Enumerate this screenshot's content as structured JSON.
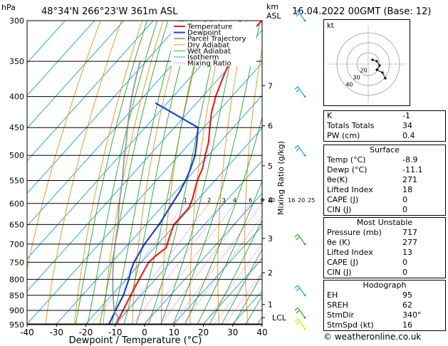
{
  "header": {
    "hpa_label": "hPa",
    "location": "48°34'N 266°23'W 361m ASL",
    "km_label": "km",
    "asl_label": "ASL",
    "datetime": "16.04.2022 00GMT (Base: 12)"
  },
  "chart_data": {
    "type": "line",
    "xlabel": "Dewpoint / Temperature (°C)",
    "ylabel": "hPa",
    "right_axis_label": "Mixing Ratio (g/kg)",
    "xlim": [
      -40,
      40
    ],
    "pressure_range": [
      300,
      1000
    ],
    "x_ticks": [
      -40,
      -30,
      -20,
      -10,
      0,
      10,
      20,
      30,
      40
    ],
    "pressure_ticks": [
      300,
      350,
      400,
      450,
      500,
      550,
      600,
      650,
      700,
      750,
      800,
      850,
      900,
      950
    ],
    "height_ticks": [
      {
        "km": "1",
        "p": 880
      },
      {
        "km": "2",
        "p": 780
      },
      {
        "km": "3",
        "p": 685
      },
      {
        "km": "4",
        "p": 592
      },
      {
        "km": "5",
        "p": 520
      },
      {
        "km": "6",
        "p": 447
      },
      {
        "km": "7",
        "p": 384
      }
    ],
    "lcl": {
      "label": "LCL",
      "p": 925
    },
    "mixing_ratio_labels": [
      "1",
      "2",
      "3",
      "4",
      "6",
      "8",
      "10",
      "16",
      "20",
      "25"
    ],
    "mixing_ratio_values": [
      1,
      2,
      3,
      4,
      6,
      8,
      10,
      16,
      20,
      25
    ],
    "legend": [
      "Temperature",
      "Dewpoint",
      "Parcel Trajectory",
      "Dry Adiabat",
      "Wet Adiabat",
      "Isotherm",
      "Mixing Ratio"
    ],
    "legend_placement": "top-left",
    "series": [
      {
        "name": "Temperature",
        "color": "#e8251c",
        "points": [
          [
            -8.9,
            965
          ],
          [
            -9.5,
            950
          ],
          [
            -10.5,
            925
          ],
          [
            -11.5,
            900
          ],
          [
            -12.5,
            875
          ],
          [
            -13.5,
            850
          ],
          [
            -14.5,
            825
          ],
          [
            -15.5,
            800
          ],
          [
            -16.5,
            775
          ],
          [
            -17.5,
            750
          ],
          [
            -17.0,
            730
          ],
          [
            -16.0,
            710
          ],
          [
            -17.5,
            690
          ],
          [
            -19.0,
            670
          ],
          [
            -20.5,
            650
          ],
          [
            -20.5,
            630
          ],
          [
            -20.5,
            610
          ],
          [
            -22.0,
            590
          ],
          [
            -24.0,
            570
          ],
          [
            -26.0,
            550
          ],
          [
            -28.0,
            525
          ],
          [
            -31.0,
            500
          ],
          [
            -34.0,
            475
          ],
          [
            -38.0,
            450
          ],
          [
            -42.0,
            425
          ],
          [
            -45.5,
            400
          ],
          [
            -48.5,
            375
          ],
          [
            -51.5,
            350
          ],
          [
            -53.5,
            325
          ],
          [
            -53.0,
            300
          ]
        ]
      },
      {
        "name": "Dewpoint",
        "color": "#1f3fd6",
        "points": [
          [
            -11.1,
            965
          ],
          [
            -12.0,
            950
          ],
          [
            -13.0,
            925
          ],
          [
            -14.0,
            900
          ],
          [
            -15.0,
            875
          ],
          [
            -16.0,
            850
          ],
          [
            -17.5,
            825
          ],
          [
            -19.0,
            800
          ],
          [
            -21.0,
            775
          ],
          [
            -22.5,
            750
          ],
          [
            -23.5,
            725
          ],
          [
            -24.5,
            700
          ],
          [
            -25.0,
            675
          ],
          [
            -25.5,
            650
          ],
          [
            -26.5,
            625
          ],
          [
            -27.5,
            600
          ],
          [
            -28.5,
            575
          ],
          [
            -30.0,
            550
          ],
          [
            -32.0,
            525
          ],
          [
            -34.5,
            500
          ],
          [
            -38.0,
            475
          ],
          [
            -42.0,
            450
          ],
          [
            -64.0,
            410
          ]
        ]
      },
      {
        "name": "Parcel Trajectory",
        "color": "#a0a0a0",
        "points": [
          [
            -8.9,
            965
          ],
          [
            -11.0,
            925
          ],
          [
            -14.5,
            900
          ],
          [
            -17.0,
            875
          ],
          [
            -19.5,
            850
          ],
          [
            -22.0,
            825
          ],
          [
            -24.5,
            800
          ],
          [
            -27.0,
            775
          ],
          [
            -29.5,
            750
          ],
          [
            -32.0,
            725
          ],
          [
            -34.5,
            700
          ],
          [
            -37.0,
            675
          ],
          [
            -39.5,
            650
          ],
          [
            -42.5,
            625
          ],
          [
            -45.5,
            600
          ],
          [
            -48.5,
            575
          ],
          [
            -51.5,
            550
          ],
          [
            -55.0,
            525
          ],
          [
            -58.5,
            500
          ],
          [
            -62.0,
            475
          ],
          [
            -66.0,
            450
          ],
          [
            -70.0,
            425
          ],
          [
            -74.0,
            400
          ],
          [
            -78.0,
            375
          ],
          [
            -82.0,
            350
          ]
        ]
      }
    ]
  },
  "hodograph": {
    "label": "kt",
    "ring_labels": [
      "20",
      "30",
      "40"
    ]
  },
  "indices": {
    "k": {
      "label": "K",
      "value": "-1"
    },
    "tt": {
      "label": "Totals Totals",
      "value": "34"
    },
    "pw": {
      "label": "PW (cm)",
      "value": "0.4"
    }
  },
  "surface": {
    "title": "Surface",
    "rows": [
      {
        "label": "Temp (°C)",
        "value": "-8.9"
      },
      {
        "label": "Dewp (°C)",
        "value": "-11.1"
      },
      {
        "label": "θe(K)",
        "value": "271"
      },
      {
        "label": "Lifted Index",
        "value": "18"
      },
      {
        "label": "CAPE (J)",
        "value": "0"
      },
      {
        "label": "CIN (J)",
        "value": "0"
      }
    ]
  },
  "most_unstable": {
    "title": "Most Unstable",
    "rows": [
      {
        "label": "Pressure (mb)",
        "value": "717"
      },
      {
        "label": "θe (K)",
        "value": "277"
      },
      {
        "label": "Lifted Index",
        "value": "13"
      },
      {
        "label": "CAPE (J)",
        "value": "0"
      },
      {
        "label": "CIN (J)",
        "value": "0"
      }
    ]
  },
  "hodograph_stats": {
    "title": "Hodograph",
    "rows": [
      {
        "label": "EH",
        "value": "95"
      },
      {
        "label": "SREH",
        "value": "62"
      },
      {
        "label": "StmDir",
        "value": "340°"
      },
      {
        "label": "StmSpd (kt)",
        "value": "16"
      }
    ]
  },
  "credit": "© weatheronline.co.uk",
  "colors": {
    "temperature": "#e8251c",
    "dewpoint": "#1f3fd6",
    "parcel": "#a0a0a0",
    "dry_adiabat": "#e89a2e",
    "wet_adiabat": "#3caa3c",
    "isotherm": "#26a9e0",
    "mixing_ratio": "#d63cbf"
  }
}
